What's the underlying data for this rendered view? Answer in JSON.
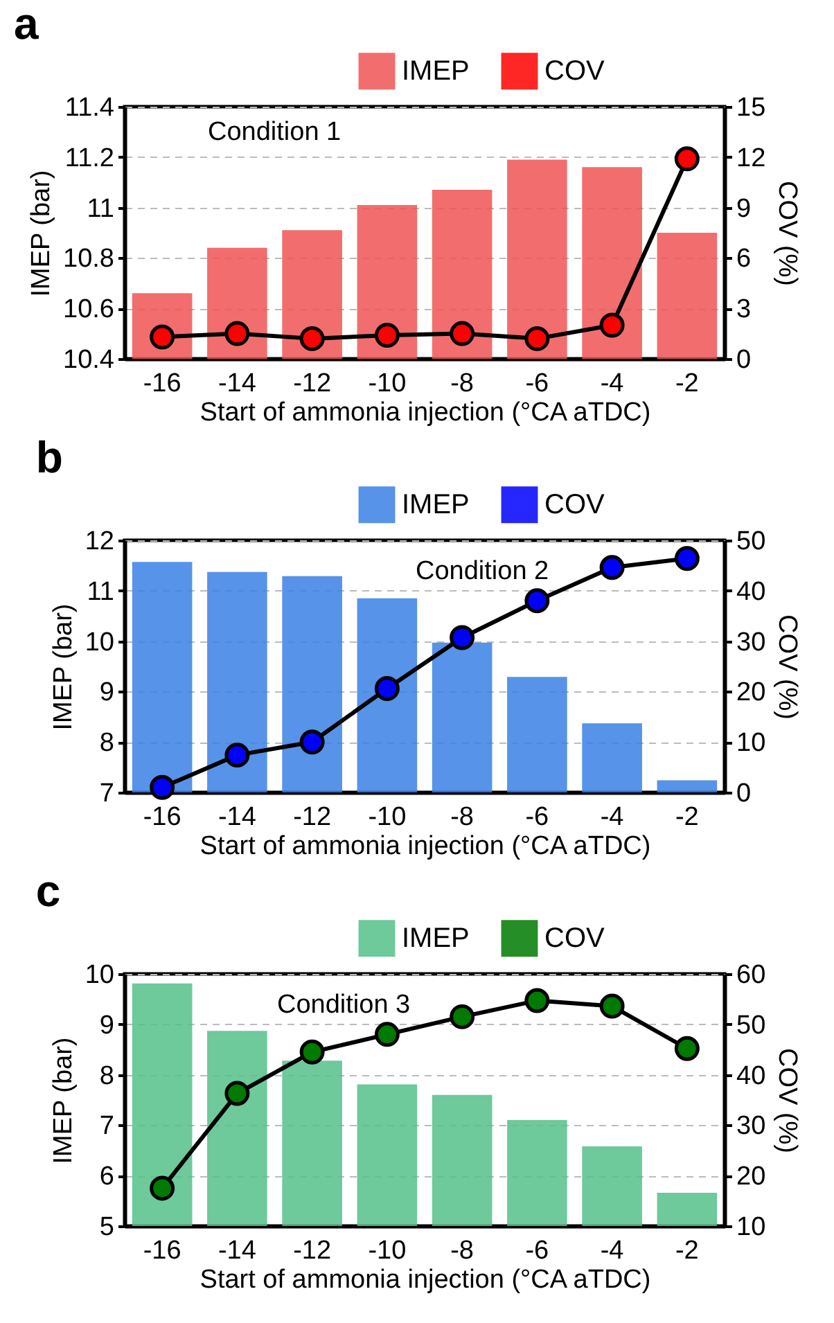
{
  "chart_data": [
    {
      "type": "bar",
      "title": "a",
      "categories": [
        "-16",
        "-14",
        "-12",
        "-10",
        "-8",
        "-6",
        "-4",
        "-2"
      ],
      "xlabel": "Start of ammonia injection (°CA aTDC)",
      "ylabel": "IMEP (bar)",
      "y2label": "COV (%)",
      "annotations": [
        "Condition 1"
      ],
      "legend": "top right",
      "grid": "y",
      "marker": "circle",
      "ylim": [
        10.4,
        11.4
      ],
      "yticks": [
        10.4,
        10.6,
        10.8,
        11.0,
        11.2,
        11.4
      ],
      "y2lim": [
        0,
        15
      ],
      "y2ticks": [
        0,
        3,
        6,
        9,
        12,
        15
      ],
      "series": [
        {
          "name": "IMEP",
          "type": "bar",
          "color": "#f05555",
          "values": [
            10.66,
            10.84,
            10.91,
            11.01,
            11.07,
            11.19,
            11.16,
            10.9
          ]
        },
        {
          "name": "COV",
          "type": "line",
          "axis": "y2",
          "color": "#ff0000",
          "values": [
            1.3,
            1.5,
            1.2,
            1.4,
            1.5,
            1.2,
            2.0,
            11.9
          ]
        }
      ]
    },
    {
      "type": "bar",
      "title": "b",
      "categories": [
        "-16",
        "-14",
        "-12",
        "-10",
        "-8",
        "-6",
        "-4",
        "-2"
      ],
      "xlabel": "Start of ammonia injection (°CA aTDC)",
      "ylabel": "IMEP (bar)",
      "y2label": "COV (%)",
      "annotations": [
        "Condition 2"
      ],
      "legend": "top right",
      "grid": "y",
      "marker": "circle",
      "ylim": [
        7,
        12
      ],
      "yticks": [
        7,
        8,
        9,
        10,
        11,
        12
      ],
      "y2lim": [
        0,
        50
      ],
      "y2ticks": [
        0,
        10,
        20,
        30,
        40,
        50
      ],
      "series": [
        {
          "name": "IMEP",
          "type": "bar",
          "color": "#3a80e4",
          "values": [
            11.57,
            11.37,
            11.29,
            10.85,
            9.97,
            9.29,
            8.37,
            7.24
          ]
        },
        {
          "name": "COV",
          "type": "line",
          "axis": "y2",
          "color": "#0000ff",
          "values": [
            1.0,
            7.4,
            10.0,
            20.6,
            30.7,
            38.0,
            44.6,
            46.4
          ]
        }
      ]
    },
    {
      "type": "bar",
      "title": "c",
      "categories": [
        "-16",
        "-14",
        "-12",
        "-10",
        "-8",
        "-6",
        "-4",
        "-2"
      ],
      "xlabel": "Start of ammonia injection (°CA aTDC)",
      "ylabel": "IMEP (bar)",
      "y2label": "COV (%)",
      "annotations": [
        "Condition 3"
      ],
      "legend": "top right",
      "grid": "y",
      "marker": "circle",
      "ylim": [
        5,
        10
      ],
      "yticks": [
        5,
        6,
        7,
        8,
        9,
        10
      ],
      "y2lim": [
        10,
        60
      ],
      "y2ticks": [
        10,
        20,
        30,
        40,
        50,
        60
      ],
      "series": [
        {
          "name": "IMEP",
          "type": "bar",
          "color": "#55c08a",
          "values": [
            9.81,
            8.87,
            8.28,
            7.81,
            7.6,
            7.1,
            6.58,
            5.66
          ]
        },
        {
          "name": "COV",
          "type": "line",
          "axis": "y2",
          "color": "#007a00",
          "values": [
            17.5,
            36.3,
            44.5,
            48.0,
            51.5,
            54.7,
            53.6,
            45.2
          ]
        }
      ]
    }
  ]
}
